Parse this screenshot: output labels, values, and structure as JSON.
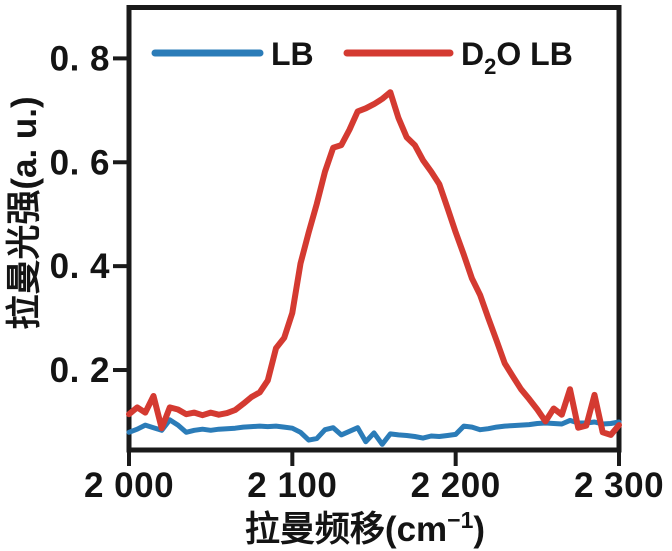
{
  "figure": {
    "background": "#ffffff",
    "axis_color": "#1a1a1a",
    "text_color": "#141414"
  },
  "chart_data": {
    "type": "line",
    "title": "",
    "xlabel": "拉曼频移(cm⁻¹)",
    "xlabel_parts": {
      "prefix": "拉曼频移(cm",
      "superscript": "−1",
      "suffix": ")"
    },
    "ylabel": "拉曼光强(a. u.)",
    "xlim": [
      2000,
      2300
    ],
    "ylim": [
      0.046,
      0.898
    ],
    "grid": false,
    "legend_position": "top-inside",
    "x_ticks": {
      "values": [
        2000,
        2100,
        2200,
        2300
      ],
      "labels": [
        "2 000",
        "2 100",
        "2 200",
        "2 300"
      ]
    },
    "y_ticks": {
      "values": [
        0.2,
        0.4,
        0.6,
        0.8
      ],
      "labels": [
        "0. 2",
        "0. 4",
        "0. 6",
        "0. 8"
      ]
    },
    "x": [
      2000,
      2005,
      2010,
      2015,
      2020,
      2025,
      2030,
      2035,
      2040,
      2045,
      2050,
      2055,
      2060,
      2065,
      2070,
      2075,
      2080,
      2085,
      2090,
      2095,
      2100,
      2105,
      2110,
      2115,
      2120,
      2125,
      2130,
      2135,
      2140,
      2145,
      2150,
      2155,
      2160,
      2165,
      2170,
      2175,
      2180,
      2185,
      2190,
      2195,
      2200,
      2205,
      2210,
      2215,
      2220,
      2225,
      2230,
      2235,
      2240,
      2245,
      2250,
      2255,
      2260,
      2265,
      2270,
      2275,
      2280,
      2285,
      2290,
      2295,
      2300
    ],
    "series": [
      {
        "name": "LB",
        "color": "#2b7cb8",
        "line_width": 5,
        "values": [
          0.08,
          0.086,
          0.094,
          0.089,
          0.084,
          0.104,
          0.094,
          0.08,
          0.084,
          0.086,
          0.084,
          0.086,
          0.087,
          0.088,
          0.09,
          0.091,
          0.092,
          0.091,
          0.092,
          0.09,
          0.088,
          0.08,
          0.065,
          0.068,
          0.085,
          0.089,
          0.075,
          0.082,
          0.089,
          0.062,
          0.079,
          0.057,
          0.077,
          0.075,
          0.074,
          0.072,
          0.069,
          0.073,
          0.072,
          0.074,
          0.076,
          0.092,
          0.09,
          0.085,
          0.087,
          0.09,
          0.092,
          0.093,
          0.094,
          0.095,
          0.097,
          0.098,
          0.097,
          0.096,
          0.103,
          0.098,
          0.098,
          0.1,
          0.096,
          0.097,
          0.1
        ]
      },
      {
        "name": "D₂O LB",
        "name_parts": {
          "prefix": "D",
          "subscript": "2",
          "suffix": "O LB"
        },
        "color": "#d43a31",
        "line_width": 6,
        "values": [
          0.115,
          0.128,
          0.118,
          0.15,
          0.088,
          0.128,
          0.124,
          0.115,
          0.118,
          0.113,
          0.118,
          0.114,
          0.117,
          0.123,
          0.135,
          0.148,
          0.157,
          0.18,
          0.242,
          0.262,
          0.31,
          0.405,
          0.465,
          0.52,
          0.582,
          0.628,
          0.633,
          0.663,
          0.698,
          0.704,
          0.712,
          0.722,
          0.735,
          0.685,
          0.648,
          0.633,
          0.604,
          0.582,
          0.558,
          0.512,
          0.465,
          0.422,
          0.376,
          0.344,
          0.3,
          0.257,
          0.213,
          0.188,
          0.163,
          0.144,
          0.124,
          0.101,
          0.126,
          0.114,
          0.163,
          0.089,
          0.093,
          0.152,
          0.08,
          0.075,
          0.094
        ]
      }
    ]
  }
}
